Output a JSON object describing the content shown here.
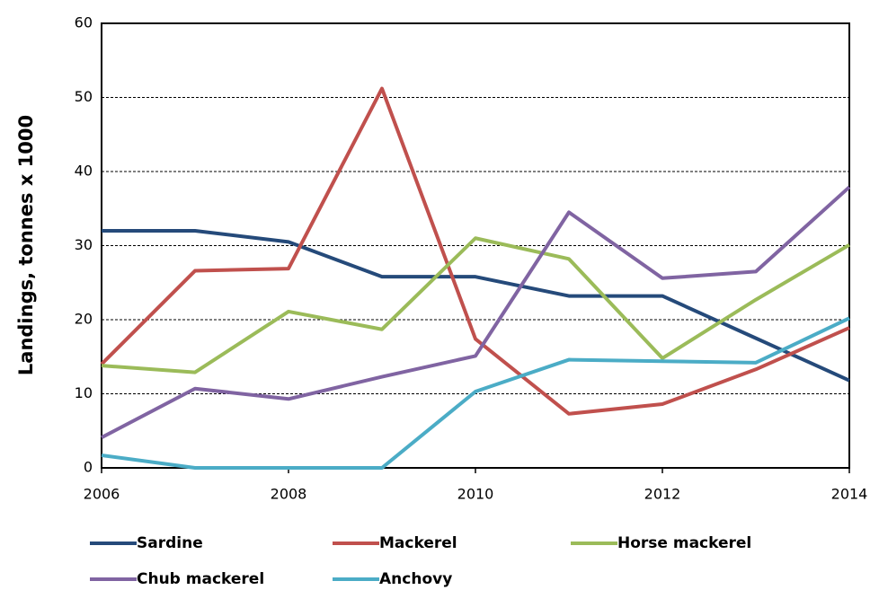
{
  "chart_data": {
    "type": "line",
    "y_label": "Landings, tonnes x 1000",
    "x": [
      2006,
      2007,
      2008,
      2009,
      2010,
      2011,
      2012,
      2013,
      2014
    ],
    "xlim": [
      2006,
      2014
    ],
    "xticks": [
      2006,
      2008,
      2010,
      2012,
      2014
    ],
    "ylim": [
      0,
      60
    ],
    "yticks": [
      0,
      10,
      20,
      30,
      40,
      50,
      60
    ],
    "grid": true,
    "legend": "bottom",
    "series": [
      {
        "name": "Sardine",
        "color": "#254a7a",
        "values": [
          32,
          32,
          30.5,
          25.8,
          25.8,
          23.2,
          23.2,
          17.5,
          11.8
        ]
      },
      {
        "name": "Mackerel",
        "color": "#c0504d",
        "values": [
          14,
          26.6,
          26.9,
          51.2,
          17.4,
          7.3,
          8.6,
          13.3,
          18.9
        ]
      },
      {
        "name": "Horse mackerel",
        "color": "#9bbb59",
        "values": [
          13.8,
          12.9,
          21.1,
          18.7,
          31,
          28.2,
          14.8,
          22.7,
          30.1
        ]
      },
      {
        "name": "Chub mackerel",
        "color": "#8064a2",
        "values": [
          4.1,
          10.7,
          9.3,
          12.3,
          15.1,
          34.5,
          25.6,
          26.5,
          37.9
        ]
      },
      {
        "name": "Anchovy",
        "color": "#4bacc6",
        "values": [
          1.7,
          0,
          0,
          0,
          10.3,
          14.6,
          14.4,
          14.2,
          20.2
        ]
      }
    ]
  }
}
